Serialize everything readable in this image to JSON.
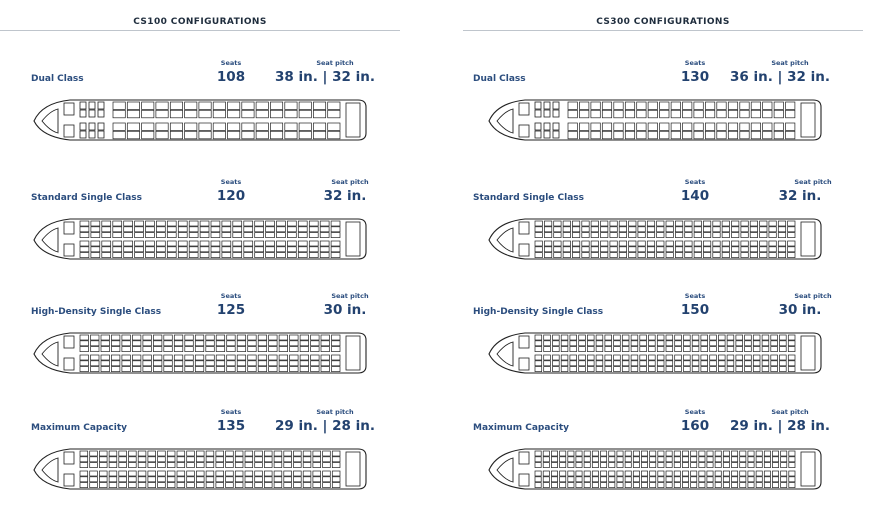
{
  "panels": [
    {
      "title": "CS100 CONFIGURATIONS",
      "configs": [
        {
          "name": "Dual Class",
          "seats_label": "Seats",
          "seats": "108",
          "pitch_label": "Seat pitch",
          "pitch": "38 in. | 32 in.",
          "business_rows": 3,
          "economy_rows": 16,
          "rows_per_side": 2
        },
        {
          "name": "Standard Single Class",
          "seats_label": "Seats",
          "seats": "120",
          "pitch_label": "Seat pitch",
          "pitch": "32 in.",
          "business_rows": 0,
          "economy_rows": 24,
          "rows_per_side": 3
        },
        {
          "name": "High-Density Single Class",
          "seats_label": "Seats",
          "seats": "125",
          "pitch_label": "Seat pitch",
          "pitch": "30 in.",
          "business_rows": 0,
          "economy_rows": 25,
          "rows_per_side": 3
        },
        {
          "name": "Maximum Capacity",
          "seats_label": "Seats",
          "seats": "135",
          "pitch_label": "Seat pitch",
          "pitch": "29 in. | 28 in.",
          "business_rows": 0,
          "economy_rows": 27,
          "rows_per_side": 3
        }
      ]
    },
    {
      "title": "CS300 CONFIGURATIONS",
      "configs": [
        {
          "name": "Dual Class",
          "seats_label": "Seats",
          "seats": "130",
          "pitch_label": "Seat pitch",
          "pitch": "36 in. | 32 in.",
          "business_rows": 3,
          "economy_rows": 20,
          "rows_per_side": 2
        },
        {
          "name": "Standard Single Class",
          "seats_label": "Seats",
          "seats": "140",
          "pitch_label": "Seat pitch",
          "pitch": "32 in.",
          "business_rows": 0,
          "economy_rows": 28,
          "rows_per_side": 3
        },
        {
          "name": "High-Density Single Class",
          "seats_label": "Seats",
          "seats": "150",
          "pitch_label": "Seat pitch",
          "pitch": "30 in.",
          "business_rows": 0,
          "economy_rows": 30,
          "rows_per_side": 3
        },
        {
          "name": "Maximum Capacity",
          "seats_label": "Seats",
          "seats": "160",
          "pitch_label": "Seat pitch",
          "pitch": "29 in. | 28 in.",
          "business_rows": 0,
          "economy_rows": 32,
          "rows_per_side": 3
        }
      ]
    }
  ]
}
